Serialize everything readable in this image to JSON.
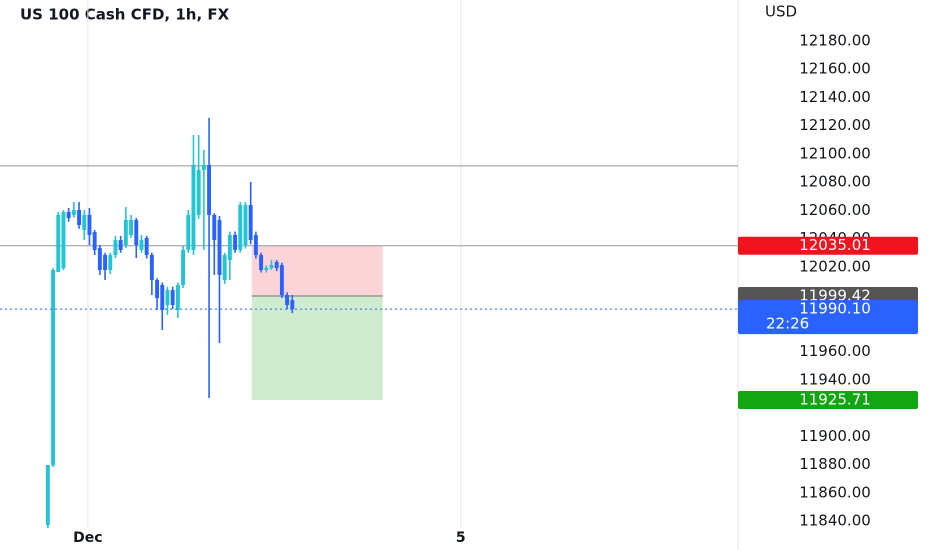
{
  "chart_data": {
    "type": "candlestick",
    "title": "US 100 Cash CFD, 1h, FX",
    "y_label": "USD",
    "up_color": "#22c4d6",
    "down_color": "#2962ff",
    "xlim": [
      -9.2,
      132.7
    ],
    "xticks": [
      {
        "value": 7.7,
        "label": "Dec"
      },
      {
        "value": 79.4,
        "label": "5"
      }
    ],
    "ylim": [
      11835.1,
      12209.0
    ],
    "yticks": [
      {
        "value": 12180,
        "label": "12180.00"
      },
      {
        "value": 12160,
        "label": "12160.00"
      },
      {
        "value": 12140,
        "label": "12140.00"
      },
      {
        "value": 12120,
        "label": "12120.00"
      },
      {
        "value": 12100,
        "label": "12100.00"
      },
      {
        "value": 12080,
        "label": "12080.00"
      },
      {
        "value": 12060,
        "label": "12060.00"
      },
      {
        "value": 12040,
        "label": "12040.00"
      },
      {
        "value": 12020,
        "label": "12020.00"
      },
      {
        "value": 11960,
        "label": "11960.00"
      },
      {
        "value": 11940,
        "label": "11940.00"
      },
      {
        "value": 11900,
        "label": "11900.00"
      },
      {
        "value": 11880,
        "label": "11880.00"
      },
      {
        "value": 11860,
        "label": "11860.00"
      },
      {
        "value": 11840,
        "label": "11840.00"
      }
    ],
    "open": [
      11837.2,
      11879.7,
      12016.4,
      12019.2,
      12058.9,
      12056.8,
      12060.3,
      12046.1,
      12056.8,
      12044.7,
      12033.4,
      12028.4,
      12017.8,
      12028.4,
      12039.0,
      12035.5,
      12042.6,
      12053.2,
      12032.0,
      12040.5,
      12028.4,
      12010.7,
      12007.2,
      11993.0,
      12003.6,
      11989.5,
      12007.2,
      12032.0,
      12032.0,
      12056.8,
      12088.6,
      12092.2,
      12056.8,
      12053.2,
      12010.7,
      12024.9,
      12042.6,
      12032.0,
      12035.5,
      12063.8,
      12042.6,
      12028.4,
      12017.8,
      12019.2,
      12023.5,
      12021.3,
      12000.1,
      11996.5
    ],
    "high": [
      11879.7,
      12019.2,
      12058.9,
      12060.3,
      12061.7,
      12066.0,
      12066.0,
      12060.3,
      12061.7,
      12046.1,
      12035.5,
      12030.0,
      12030.0,
      12042.0,
      12042.0,
      12062.4,
      12056.8,
      12054.6,
      12042.6,
      12042.0,
      12030.0,
      12012.0,
      12009.0,
      12006.0,
      12006.0,
      12009.0,
      12035.0,
      12060.3,
      12113.4,
      12113.4,
      12102.8,
      12125.5,
      12058.0,
      12056.0,
      12030.0,
      12045.0,
      12045.0,
      12066.0,
      12066.0,
      12080.1,
      12045.0,
      12030.0,
      12021.0,
      12025.0,
      12025.0,
      12023.0,
      12002.0,
      12000.1
    ],
    "low": [
      11835.1,
      11878.3,
      12016.4,
      12017.8,
      12052.0,
      12055.0,
      12047.0,
      12039.0,
      12035.5,
      12028.4,
      12014.3,
      12010.7,
      12015.0,
      12026.3,
      12030.0,
      12033.4,
      12040.5,
      12026.3,
      12030.0,
      12026.0,
      12000.1,
      11989.5,
      11975.3,
      11985.9,
      11990.0,
      11983.8,
      12005.0,
      12030.0,
      12028.4,
      12054.0,
      12032.0,
      11927.1,
      12014.3,
      11966.1,
      12008.0,
      12010.7,
      12030.0,
      12030.0,
      12033.0,
      12036.0,
      12026.0,
      12016.0,
      12016.0,
      12018.0,
      12017.0,
      11998.0,
      11990.0,
      11987.3
    ],
    "close": [
      11879.7,
      12017.8,
      12056.8,
      12058.9,
      12054.6,
      12060.3,
      12049.7,
      12056.8,
      12042.6,
      12032.0,
      12017.8,
      12017.8,
      12028.4,
      12039.0,
      12032.0,
      12053.2,
      12053.2,
      12035.5,
      12039.0,
      12028.4,
      12010.7,
      11997.9,
      11989.5,
      12003.6,
      11993.0,
      12007.2,
      12032.0,
      12056.8,
      12092.2,
      12088.6,
      12092.2,
      12056.8,
      12039.0,
      12014.3,
      12028.4,
      12042.6,
      12032.0,
      12063.8,
      12063.8,
      12039.0,
      12028.4,
      12017.8,
      12019.2,
      12021.3,
      12019.2,
      12000.1,
      11993.0,
      11990.1
    ],
    "hlines": [
      12091.5,
      12035.01
    ],
    "position": {
      "start": 39.2,
      "end": 64.4,
      "stop": 12035.01,
      "entry": 11999.42,
      "target": 11925.71
    },
    "price_labels": [
      {
        "value": 12035.01,
        "label": "12035.01",
        "color": "#f0141e"
      },
      {
        "value": 11999.42,
        "label": "11999.42",
        "color": "#555555"
      },
      {
        "value": 11990.1,
        "label": "11990.10",
        "color": "#2962ff",
        "countdown": "22:26"
      },
      {
        "value": 11925.71,
        "label": "11925.71",
        "color": "#13a613"
      }
    ]
  }
}
